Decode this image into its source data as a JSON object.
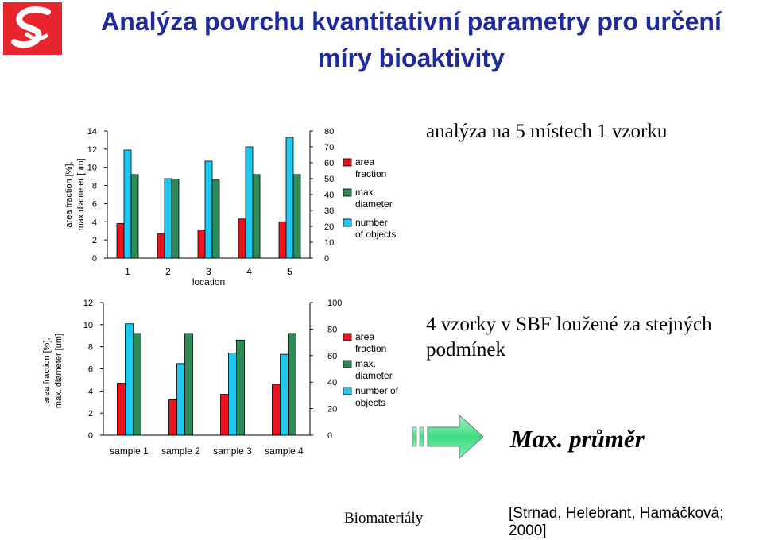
{
  "slide": {
    "title": "Analýza povrchu kvantitativní parametry pro určení míry bioaktivity",
    "note_top": "analýza na 5 místech 1 vzorku",
    "note_bottom": "4 vzorky v SBF loužené za stejných podmínek",
    "max_label": "Max. průměr",
    "footer_left": "Biomateriály",
    "footer_right": "[Strnad, Helebrant, Hamáčková; 2000]",
    "colors": {
      "title": "#1f2a9e",
      "logo": "#e8242c",
      "arrow": "#3ddc84"
    },
    "icons": {
      "logo": "logo-icon",
      "arrow": "arrow-right-icon"
    }
  },
  "chart_data": [
    {
      "type": "bar",
      "categories": [
        "1",
        "2",
        "3",
        "4",
        "5"
      ],
      "xlabel": "location",
      "ylabel": "area fraction [%],\nmax.diameter [um]",
      "ylim": [
        0,
        14
      ],
      "yticks": [
        0,
        2,
        4,
        6,
        8,
        10,
        12,
        14
      ],
      "y2lim": [
        0,
        80
      ],
      "y2ticks": [
        0,
        10,
        20,
        30,
        40,
        50,
        60,
        70,
        80
      ],
      "series": [
        {
          "name": "area fraction",
          "axis": "left",
          "color": "#e8141e",
          "values": [
            3.8,
            2.7,
            3.1,
            4.3,
            4.0
          ]
        },
        {
          "name": "number of objects",
          "axis": "right",
          "color": "#1ec8f0",
          "values": [
            68,
            50,
            61,
            70,
            76
          ]
        },
        {
          "name": "max. diameter",
          "axis": "left",
          "color": "#2e8b57",
          "values": [
            9.2,
            8.7,
            8.6,
            9.2,
            9.2
          ]
        }
      ],
      "legend": [
        "area fraction",
        "max. diameter",
        "number of objects"
      ],
      "legend_position": "right"
    },
    {
      "type": "bar",
      "categories": [
        "sample 1",
        "sample 2",
        "sample 3",
        "sample 4"
      ],
      "xlabel": "",
      "ylabel": "area fraction [%],\nmax. diameter [um]",
      "ylim": [
        0,
        12
      ],
      "yticks": [
        0,
        2,
        4,
        6,
        8,
        10,
        12
      ],
      "y2lim": [
        0,
        100
      ],
      "y2ticks": [
        0,
        20,
        40,
        60,
        80,
        100
      ],
      "series": [
        {
          "name": "area fraction",
          "axis": "left",
          "color": "#e8141e",
          "values": [
            4.7,
            3.2,
            3.7,
            4.6
          ]
        },
        {
          "name": "number of objects",
          "axis": "right",
          "color": "#1ec8f0",
          "values": [
            84,
            54,
            62,
            61
          ]
        },
        {
          "name": "max. diameter",
          "axis": "left",
          "color": "#2e8b57",
          "values": [
            9.2,
            9.2,
            8.6,
            9.2
          ]
        }
      ],
      "legend": [
        "area fraction",
        "max. diameter",
        "number of objects"
      ],
      "legend_position": "right"
    }
  ]
}
